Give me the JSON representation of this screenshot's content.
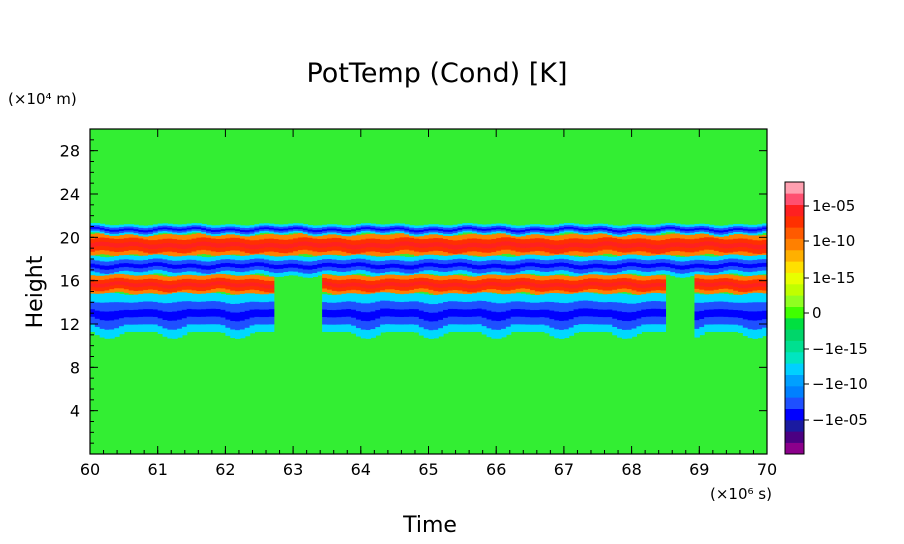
{
  "chart_data": {
    "type": "heatmap",
    "title": "PotTemp (Cond) [K]",
    "xlabel": "Time",
    "ylabel": "Height",
    "x_unit": "(×10⁶ s)",
    "y_unit": "(×10⁴ m)",
    "xlim": [
      60,
      70
    ],
    "ylim": [
      0,
      30
    ],
    "x_ticks": [
      60,
      61,
      62,
      63,
      64,
      65,
      66,
      67,
      68,
      69,
      70
    ],
    "x_tick_labels": [
      "60",
      "61",
      "62",
      "63",
      "64",
      "65",
      "66",
      "67",
      "68",
      "69",
      "70"
    ],
    "y_ticks": [
      4,
      8,
      12,
      16,
      20,
      24,
      28
    ],
    "y_tick_labels": [
      "4",
      "8",
      "12",
      "16",
      "20",
      "24",
      "28"
    ],
    "background_value": 0,
    "layers": [
      {
        "name": "upper-warm-band",
        "y": [
          18.3,
          20.3
        ],
        "sign": "positive"
      },
      {
        "name": "top-cool-edge",
        "y": [
          20.3,
          21.2
        ],
        "sign": "negative"
      },
      {
        "name": "mid-cool-band",
        "y": [
          16.5,
          18.3
        ],
        "sign": "negative"
      },
      {
        "name": "lower-warm-band",
        "y": [
          14.8,
          16.5
        ],
        "sign": "positive",
        "gaps": [
          [
            62.7,
            63.4
          ],
          [
            68.5,
            68.9
          ]
        ]
      },
      {
        "name": "lower-cool-band",
        "y": [
          10.5,
          14.8
        ],
        "sign": "negative",
        "gaps": [
          [
            62.7,
            63.4
          ],
          [
            68.5,
            68.9
          ]
        ]
      }
    ],
    "colorbar": {
      "labels": [
        "1e-05",
        "1e-10",
        "1e-15",
        "0",
        "−1e-15",
        "−1e-10",
        "−1e-05"
      ],
      "colors": [
        "#8b008b",
        "#4b0082",
        "#1a1aa0",
        "#0000ff",
        "#1e50ff",
        "#0080ff",
        "#00a0ff",
        "#00d0ff",
        "#00e5c0",
        "#00e090",
        "#00d66a",
        "#00e040",
        "#40ff00",
        "#90ff20",
        "#c0ff00",
        "#e8ff00",
        "#ffe000",
        "#ffb000",
        "#ff8000",
        "#ff5a00",
        "#ff3000",
        "#ff2020",
        "#ff5070",
        "#ffa0b0"
      ],
      "background_color": "#33ee33"
    }
  }
}
